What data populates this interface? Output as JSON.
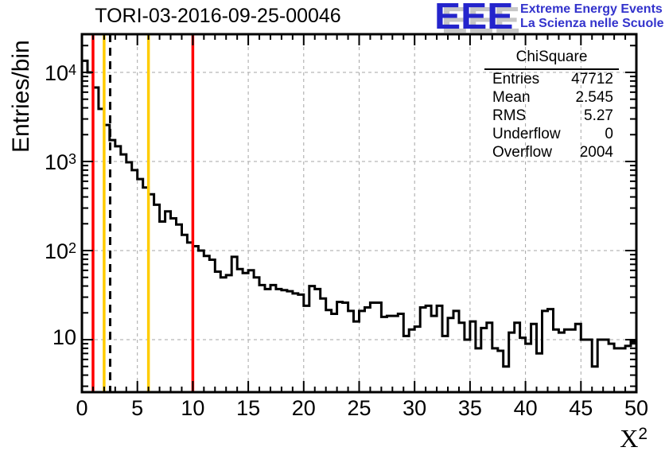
{
  "header": {
    "title": "TORI-03-2016-09-25-00046"
  },
  "logo": {
    "acronym": "EEE",
    "line1": "Extreme Energy Events",
    "line2": "La Scienza nelle Scuole",
    "text_color": "#3333cc",
    "acronym_color": "#2424cc",
    "shadow_color": "#c6c6c6"
  },
  "stats": {
    "title": "ChiSquare",
    "rows": [
      {
        "label": "Entries",
        "value": "47712"
      },
      {
        "label": "Mean",
        "value": "2.545"
      },
      {
        "label": "RMS",
        "value": "5.27"
      },
      {
        "label": "Underflow",
        "value": "0"
      },
      {
        "label": "Overflow",
        "value": "2004"
      }
    ]
  },
  "chart_data": {
    "type": "bar",
    "style": "step-histogram",
    "title": "TORI-03-2016-09-25-00046",
    "xlabel": "X^2",
    "xlabel_base": "X",
    "xlabel_exp": "2",
    "ylabel": "Entries/bin",
    "x_range": [
      0,
      50
    ],
    "bin_width": 0.5,
    "y_scale": "log",
    "y_range": [
      2.6,
      26800
    ],
    "grid": true,
    "line_color": "#000000",
    "grid_color": "#a6a6a6",
    "x_ticks": [
      0,
      5,
      10,
      15,
      20,
      25,
      30,
      35,
      40,
      45,
      50
    ],
    "y_ticks": [
      {
        "value": 10,
        "base": "10",
        "sup": ""
      },
      {
        "value": 100,
        "base": "10",
        "sup": "2"
      },
      {
        "value": 1000,
        "base": "10",
        "sup": "3"
      },
      {
        "value": 10000,
        "base": "10",
        "sup": "4"
      }
    ],
    "values": [
      13500,
      10000,
      6760,
      3890,
      2570,
      1740,
      1480,
      1200,
      980,
      800,
      635,
      510,
      428,
      327,
      212,
      275,
      230,
      196,
      150,
      123,
      112,
      100,
      87,
      79,
      58,
      50,
      53,
      85,
      62,
      56,
      60,
      50,
      41,
      37,
      41,
      37,
      36,
      35,
      33,
      32,
      24,
      40,
      37,
      29,
      21.5,
      19.5,
      26.5,
      26,
      21,
      16,
      21,
      23,
      26,
      26,
      18,
      18.5,
      18.5,
      19.5,
      11,
      13,
      14,
      23,
      24,
      18.5,
      24,
      11,
      17.5,
      21,
      15.5,
      10,
      16,
      8,
      13.5,
      15.5,
      8,
      7.5,
      5,
      12,
      15.5,
      10.5,
      9,
      15,
      7,
      21,
      22,
      13,
      12,
      13,
      13,
      15,
      10,
      10,
      5,
      10,
      10,
      9,
      8,
      8,
      8.5,
      9.5
    ],
    "marker_lines": [
      {
        "name": "red-threshold-low",
        "x": 1,
        "color": "#ff0000",
        "style": "solid"
      },
      {
        "name": "yellow-threshold-low",
        "x": 2,
        "color": "#ffcc00",
        "style": "solid"
      },
      {
        "name": "mean-dashed-line",
        "x": 2.545,
        "color": "#000000",
        "style": "dashed"
      },
      {
        "name": "yellow-threshold-high",
        "x": 6,
        "color": "#ffcc00",
        "style": "solid"
      },
      {
        "name": "red-threshold-high",
        "x": 10,
        "color": "#ff0000",
        "style": "solid"
      }
    ]
  }
}
